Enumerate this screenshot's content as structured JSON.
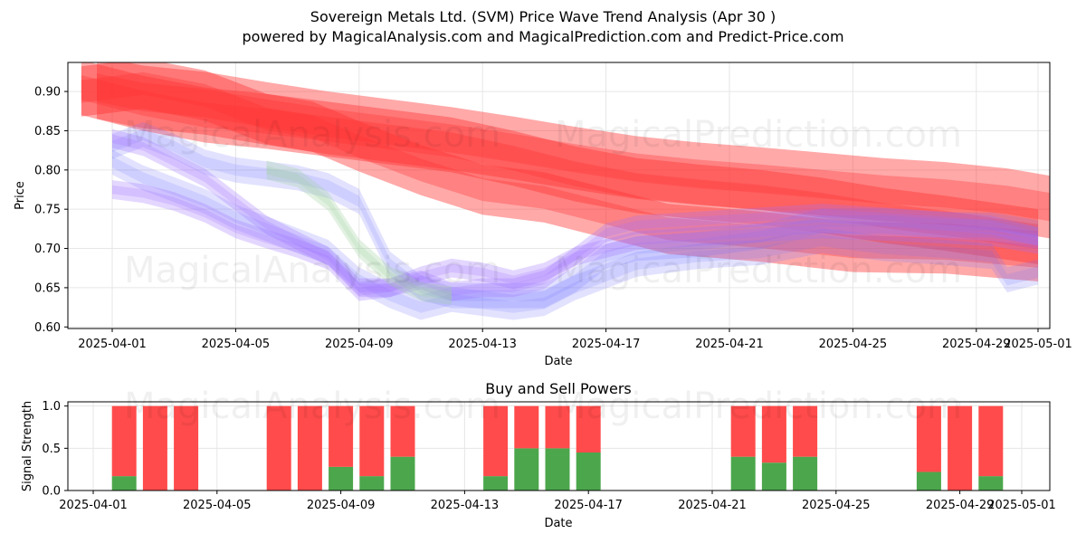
{
  "title": "Sovereign Metals Ltd. (SVM) Price Wave Trend Analysis (Apr 30 )",
  "subtitle": "powered by MagicalAnalysis.com and MagicalPrediction.com and Predict-Price.com",
  "watermarks": [
    "MagicalAnalysis.com",
    "MagicalPrediction.com"
  ],
  "colors": {
    "sell": "#ff4b4b",
    "buy": "#4ca64c",
    "red_band": "#ff3333",
    "blue_band": "#6f6fff",
    "purple_band": "#9f6fff",
    "green_band": "#9fcf9f"
  },
  "chart_data": [
    {
      "type": "area",
      "title": "",
      "xlabel": "Date",
      "ylabel": "Price",
      "x_ticks": [
        "2025-04-01",
        "2025-04-05",
        "2025-04-09",
        "2025-04-13",
        "2025-04-17",
        "2025-04-21",
        "2025-04-25",
        "2025-04-29",
        "2025-05-01"
      ],
      "y_ticks": [
        "0.60",
        "0.65",
        "0.70",
        "0.75",
        "0.80",
        "0.85",
        "0.90"
      ],
      "xlim": [
        "2025-03-30.9",
        "2025-05-01.4"
      ],
      "ylim": [
        0.598,
        0.937
      ],
      "grid": true,
      "series": [
        {
          "name": "red-wave-1",
          "color": "red",
          "halfwidth": 0.04,
          "x": [
            -0.5,
            1,
            3,
            5,
            7,
            9,
            11,
            13,
            15,
            17,
            19,
            21,
            23,
            25,
            27,
            29,
            30.5
          ],
          "y": [
            0.905,
            0.893,
            0.885,
            0.872,
            0.86,
            0.85,
            0.84,
            0.828,
            0.815,
            0.803,
            0.795,
            0.789,
            0.782,
            0.775,
            0.77,
            0.762,
            0.752
          ]
        },
        {
          "name": "red-wave-2",
          "color": "red",
          "halfwidth": 0.032,
          "x": [
            -1,
            1,
            3,
            5,
            6.5,
            8,
            10,
            12,
            14,
            16,
            18,
            21,
            24,
            27,
            30
          ],
          "y": [
            0.9,
            0.91,
            0.895,
            0.865,
            0.855,
            0.83,
            0.8,
            0.775,
            0.765,
            0.745,
            0.725,
            0.715,
            0.702,
            0.7,
            0.69
          ]
        },
        {
          "name": "red-wave-3",
          "color": "red",
          "halfwidth": 0.035,
          "x": [
            -1,
            1,
            3,
            5,
            7,
            9,
            11,
            13,
            15,
            17,
            19,
            21,
            23,
            25,
            27,
            30
          ],
          "y": [
            0.905,
            0.885,
            0.87,
            0.862,
            0.852,
            0.842,
            0.832,
            0.815,
            0.795,
            0.78,
            0.772,
            0.765,
            0.755,
            0.742,
            0.732,
            0.715
          ]
        },
        {
          "name": "blue-wave-1",
          "color": "blue",
          "halfwidth": 0.016,
          "x": [
            0,
            1,
            2,
            3,
            4,
            5,
            6,
            7,
            8,
            9,
            10,
            11,
            12,
            13,
            14,
            15,
            16,
            17,
            19,
            21,
            23,
            25,
            27,
            28.5,
            30
          ],
          "y": [
            0.83,
            0.845,
            0.83,
            0.81,
            0.8,
            0.795,
            0.79,
            0.78,
            0.76,
            0.68,
            0.65,
            0.64,
            0.64,
            0.64,
            0.64,
            0.66,
            0.69,
            0.7,
            0.705,
            0.715,
            0.735,
            0.735,
            0.73,
            0.73,
            0.72
          ]
        },
        {
          "name": "blue-wave-2",
          "color": "blue",
          "halfwidth": 0.016,
          "x": [
            0,
            1,
            2,
            3,
            4,
            5,
            6,
            7,
            8,
            9,
            10,
            11,
            12,
            13,
            14,
            15,
            16,
            17,
            19,
            21,
            23,
            25,
            27,
            28.5,
            29,
            30
          ],
          "y": [
            0.81,
            0.79,
            0.775,
            0.76,
            0.74,
            0.725,
            0.71,
            0.695,
            0.66,
            0.64,
            0.625,
            0.635,
            0.63,
            0.625,
            0.63,
            0.65,
            0.665,
            0.68,
            0.69,
            0.695,
            0.71,
            0.7,
            0.695,
            0.69,
            0.66,
            0.67
          ]
        },
        {
          "name": "purple-wave-1",
          "color": "purple",
          "halfwidth": 0.012,
          "x": [
            0,
            1,
            2,
            3,
            4,
            5,
            6,
            7,
            8,
            9,
            10,
            11,
            12,
            13,
            14,
            15,
            16,
            17,
            19,
            21,
            23,
            25,
            27,
            28.5,
            30
          ],
          "y": [
            0.84,
            0.83,
            0.81,
            0.79,
            0.76,
            0.73,
            0.71,
            0.69,
            0.65,
            0.65,
            0.66,
            0.645,
            0.65,
            0.65,
            0.66,
            0.69,
            0.72,
            0.73,
            0.735,
            0.74,
            0.745,
            0.74,
            0.735,
            0.73,
            0.715
          ]
        },
        {
          "name": "purple-wave-2",
          "color": "purple",
          "halfwidth": 0.012,
          "x": [
            0,
            1,
            2,
            3,
            4,
            5,
            6,
            7,
            8,
            9,
            10,
            11,
            12,
            13,
            14,
            15,
            16,
            17,
            19,
            21,
            23,
            25,
            27,
            28.5,
            30
          ],
          "y": [
            0.775,
            0.77,
            0.76,
            0.745,
            0.725,
            0.712,
            0.7,
            0.685,
            0.645,
            0.65,
            0.665,
            0.675,
            0.67,
            0.66,
            0.67,
            0.69,
            0.7,
            0.71,
            0.715,
            0.72,
            0.725,
            0.722,
            0.718,
            0.715,
            0.705
          ]
        },
        {
          "name": "green-wave-1",
          "color": "green",
          "halfwidth": 0.012,
          "x": [
            5,
            6,
            7,
            8,
            9,
            10,
            11
          ],
          "y": [
            0.8,
            0.79,
            0.76,
            0.7,
            0.665,
            0.645,
            0.64
          ]
        }
      ]
    },
    {
      "type": "bar",
      "title": "Buy and Sell Powers",
      "xlabel": "Date",
      "ylabel": "Signal Strength",
      "x_ticks": [
        "2025-04-01",
        "2025-04-05",
        "2025-04-09",
        "2025-04-13",
        "2025-04-17",
        "2025-04-21",
        "2025-04-25",
        "2025-04-29",
        "2025-05-01"
      ],
      "y_ticks": [
        "0.0",
        "0.5",
        "1.0"
      ],
      "ylim": [
        0,
        1.05
      ],
      "grid": true,
      "bars": [
        {
          "date": "2025-04-02",
          "buy": 0.17,
          "sell": 0.83
        },
        {
          "date": "2025-04-03",
          "buy": 0.0,
          "sell": 1.0
        },
        {
          "date": "2025-04-04",
          "buy": 0.0,
          "sell": 1.0
        },
        {
          "date": "2025-04-07",
          "buy": 0.0,
          "sell": 1.0
        },
        {
          "date": "2025-04-08",
          "buy": 0.0,
          "sell": 1.0
        },
        {
          "date": "2025-04-09",
          "buy": 0.28,
          "sell": 0.72
        },
        {
          "date": "2025-04-10",
          "buy": 0.17,
          "sell": 0.83
        },
        {
          "date": "2025-04-11",
          "buy": 0.4,
          "sell": 0.6
        },
        {
          "date": "2025-04-14",
          "buy": 0.17,
          "sell": 0.83
        },
        {
          "date": "2025-04-15",
          "buy": 0.5,
          "sell": 0.5
        },
        {
          "date": "2025-04-16",
          "buy": 0.5,
          "sell": 0.5
        },
        {
          "date": "2025-04-17",
          "buy": 0.45,
          "sell": 0.55
        },
        {
          "date": "2025-04-22",
          "buy": 0.4,
          "sell": 0.6
        },
        {
          "date": "2025-04-23",
          "buy": 0.33,
          "sell": 0.67
        },
        {
          "date": "2025-04-24",
          "buy": 0.4,
          "sell": 0.6
        },
        {
          "date": "2025-04-28",
          "buy": 0.22,
          "sell": 0.78
        },
        {
          "date": "2025-04-29",
          "buy": 0.0,
          "sell": 1.0
        },
        {
          "date": "2025-04-30",
          "buy": 0.17,
          "sell": 0.83
        }
      ]
    }
  ]
}
